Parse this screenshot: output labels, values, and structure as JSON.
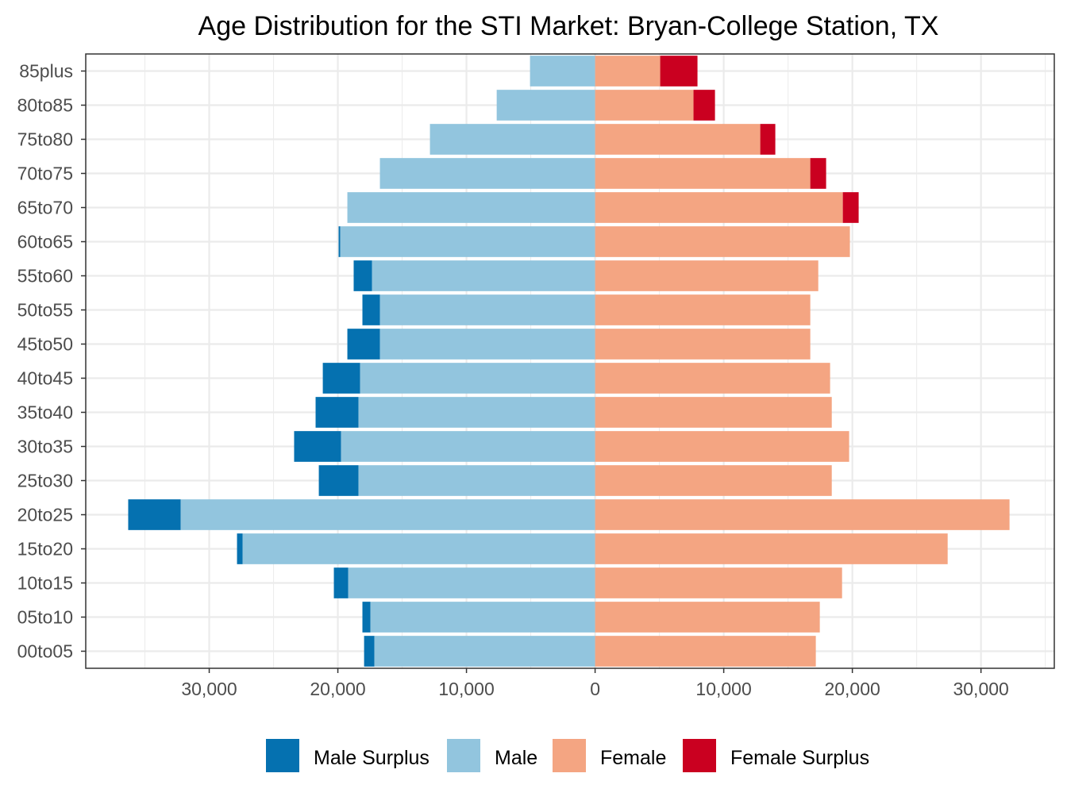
{
  "chart_data": {
    "type": "bar",
    "orientation": "horizontal",
    "title": "Age Distribution for the STI Market: Bryan-College Station, TX",
    "xlabel": "",
    "ylabel": "",
    "xlim": [
      -39600,
      35700
    ],
    "x_ticks": [
      -30000,
      -20000,
      -10000,
      0,
      10000,
      20000,
      30000
    ],
    "x_tick_labels": [
      "30,000",
      "20,000",
      "10,000",
      "0",
      "10,000",
      "20,000",
      "30,000"
    ],
    "grid": true,
    "legend_position": "bottom",
    "categories": [
      "85plus",
      "80to85",
      "75to80",
      "70to75",
      "65to70",
      "60to65",
      "55to60",
      "50to55",
      "45to50",
      "40to45",
      "35to40",
      "30to35",
      "25to30",
      "20to25",
      "15to20",
      "10to15",
      "05to10",
      "00to05"
    ],
    "male_total": [
      5060,
      7650,
      12840,
      16730,
      19260,
      19940,
      18770,
      18090,
      19260,
      21170,
      21730,
      23400,
      21480,
      36300,
      27840,
      20310,
      18090,
      17960
    ],
    "female_total": [
      7960,
      9320,
      14010,
      17960,
      20490,
      19810,
      17350,
      16730,
      16730,
      18270,
      18400,
      19750,
      18400,
      32220,
      27410,
      19200,
      17470,
      17160
    ],
    "series": [
      {
        "name": "Male Surplus",
        "color": "#0571B0"
      },
      {
        "name": "Male",
        "color": "#92C5DE"
      },
      {
        "name": "Female",
        "color": "#F4A582"
      },
      {
        "name": "Female Surplus",
        "color": "#CA0020"
      }
    ]
  }
}
